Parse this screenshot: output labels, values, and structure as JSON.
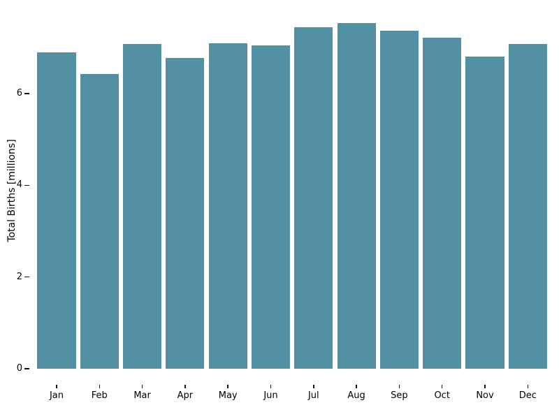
{
  "chart_data": {
    "type": "bar",
    "categories": [
      "Jan",
      "Feb",
      "Mar",
      "Apr",
      "May",
      "Jun",
      "Jul",
      "Aug",
      "Sep",
      "Oct",
      "Nov",
      "Dec"
    ],
    "values": [
      6.9,
      6.43,
      7.08,
      6.78,
      7.1,
      7.05,
      7.45,
      7.54,
      7.37,
      7.22,
      6.81,
      7.08
    ],
    "title": "",
    "xlabel": "",
    "ylabel": "Total Births [millions]",
    "yticks": [
      0,
      2,
      4,
      6
    ],
    "ylim": [
      0,
      7.92
    ],
    "bar_color": "#5291A4",
    "tick_color": "#111111",
    "text_color": "#000000",
    "background": "#FFFFFF",
    "grid": false,
    "legend": null
  }
}
